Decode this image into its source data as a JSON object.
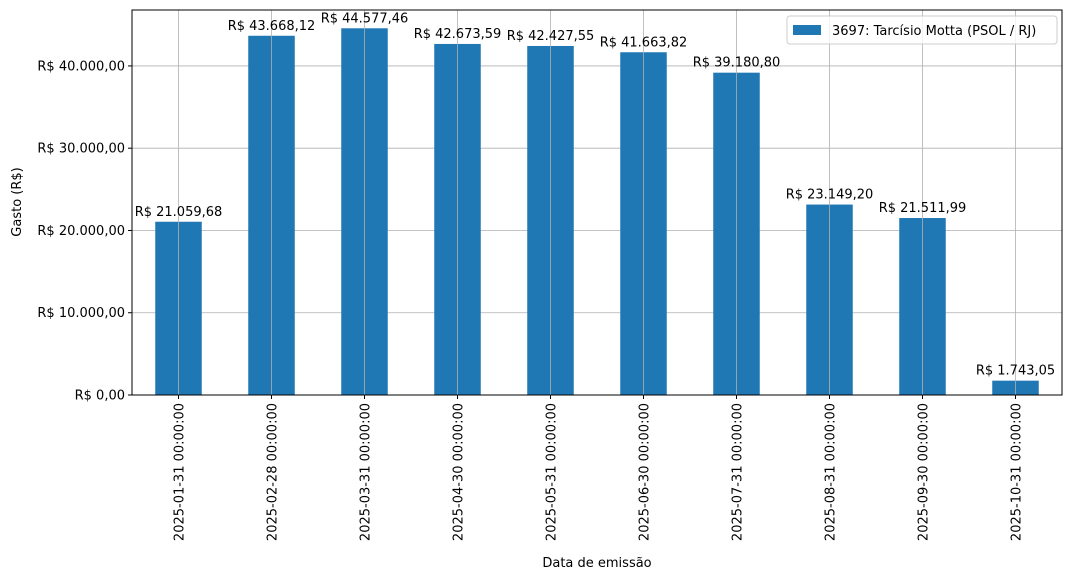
{
  "chart_data": {
    "type": "bar",
    "title": "",
    "xlabel": "Data de emissão",
    "ylabel": "Gasto (R$)",
    "ylim": [
      0,
      46800
    ],
    "grid": true,
    "legend_position": "top-right",
    "bar_color": "#1f77b4",
    "categories": [
      "2025-01-31 00:00:00",
      "2025-02-28 00:00:00",
      "2025-03-31 00:00:00",
      "2025-04-30 00:00:00",
      "2025-05-31 00:00:00",
      "2025-06-30 00:00:00",
      "2025-07-31 00:00:00",
      "2025-08-31 00:00:00",
      "2025-09-30 00:00:00",
      "2025-10-31 00:00:00"
    ],
    "series": [
      {
        "name": "3697: Tarcísio Motta (PSOL / RJ)",
        "values": [
          21059.68,
          43668.12,
          44577.46,
          42673.59,
          42427.55,
          41663.82,
          39180.8,
          23149.2,
          21511.99,
          1743.05
        ],
        "labels": [
          "R$ 21.059,68",
          "R$ 43.668,12",
          "R$ 44.577,46",
          "R$ 42.673,59",
          "R$ 42.427,55",
          "R$ 41.663,82",
          "R$ 39.180,80",
          "R$ 23.149,20",
          "R$ 21.511,99",
          "R$ 1.743,05"
        ]
      }
    ],
    "yticks": [
      0,
      10000,
      20000,
      30000,
      40000
    ],
    "ytick_labels": [
      "R$ 0,00",
      "R$ 10.000,00",
      "R$ 20.000,00",
      "R$ 30.000,00",
      "R$ 40.000,00"
    ]
  }
}
